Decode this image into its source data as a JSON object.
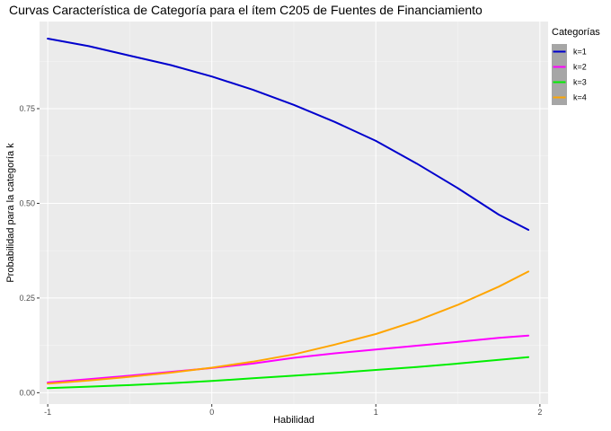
{
  "chart_data": {
    "type": "line",
    "title": "Curvas Característica de Categoría para el ítem C205 de Fuentes de Financiamiento",
    "xlabel": "Habilidad",
    "ylabel": "Probabilidad para la categoría k",
    "xlim": [
      -1.05,
      2.05
    ],
    "ylim": [
      -0.03,
      0.98
    ],
    "x_ticks": [
      -1,
      0,
      1,
      2
    ],
    "x_tick_labels": [
      "-1",
      "0",
      "1",
      "2"
    ],
    "y_ticks": [
      0,
      0.25,
      0.5,
      0.75
    ],
    "y_tick_labels": [
      "0.00",
      "0.25",
      "0.50",
      "0.75"
    ],
    "grid": true,
    "background": "#ebebeb",
    "grid_major_color": "#ffffff",
    "legend": {
      "title": "Categorías",
      "position": "top-right",
      "background": "#a6a6a6"
    },
    "x": [
      -1.0,
      -0.75,
      -0.5,
      -0.25,
      0.0,
      0.25,
      0.5,
      0.75,
      1.0,
      1.25,
      1.5,
      1.75,
      1.93
    ],
    "series": [
      {
        "name": "k=1",
        "color": "#0000cd",
        "values": [
          0.935,
          0.915,
          0.89,
          0.865,
          0.835,
          0.8,
          0.76,
          0.715,
          0.665,
          0.605,
          0.54,
          0.47,
          0.43
        ]
      },
      {
        "name": "k=2",
        "color": "#ff00ff",
        "values": [
          0.027,
          0.036,
          0.045,
          0.055,
          0.065,
          0.077,
          0.092,
          0.104,
          0.114,
          0.124,
          0.134,
          0.145,
          0.151
        ]
      },
      {
        "name": "k=3",
        "color": "#00ee00",
        "values": [
          0.012,
          0.016,
          0.02,
          0.025,
          0.031,
          0.038,
          0.045,
          0.052,
          0.06,
          0.068,
          0.077,
          0.087,
          0.094
        ]
      },
      {
        "name": "k=4",
        "color": "#ffa500",
        "values": [
          0.024,
          0.032,
          0.042,
          0.053,
          0.066,
          0.082,
          0.101,
          0.127,
          0.155,
          0.19,
          0.232,
          0.28,
          0.32
        ]
      }
    ]
  }
}
